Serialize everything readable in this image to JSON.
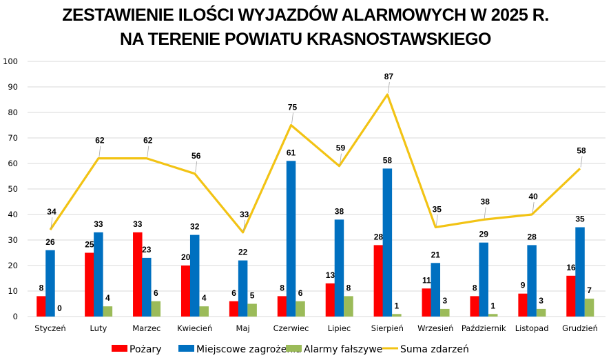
{
  "chart_data": {
    "type": "bar",
    "title": "ZESTAWIENIE ILOŚCI WYJAZDÓW ALARMOWYCH W 2025 R.",
    "subtitle": "NA TERENIE POWIATU KRASNOSTAWSKIEGO",
    "xlabel": "",
    "ylabel": "",
    "ylim": [
      0,
      100
    ],
    "yticks": [
      0,
      10,
      20,
      30,
      40,
      50,
      60,
      70,
      80,
      90,
      100
    ],
    "grid": true,
    "legend_position": "bottom",
    "categories": [
      "Styczeń",
      "Luty",
      "Marzec",
      "Kwiecień",
      "Maj",
      "Czerwiec",
      "Lipiec",
      "Sierpień",
      "Wrzesień",
      "Październik",
      "Listopad",
      "Grudzień"
    ],
    "series": [
      {
        "name": "Pożary",
        "type": "bar",
        "color": "#FF0000",
        "values": [
          8,
          25,
          33,
          20,
          6,
          8,
          13,
          28,
          11,
          8,
          9,
          16
        ]
      },
      {
        "name": "Miejscowe zagrożenia",
        "type": "bar",
        "color": "#0070C0",
        "values": [
          26,
          33,
          23,
          32,
          22,
          61,
          38,
          58,
          21,
          29,
          28,
          35
        ]
      },
      {
        "name": "Alarmy fałszywe",
        "type": "bar",
        "color": "#9BBB59",
        "values": [
          0,
          4,
          6,
          4,
          5,
          6,
          8,
          1,
          3,
          1,
          3,
          7
        ]
      },
      {
        "name": "Suma zdarzeń",
        "type": "line",
        "color": "#F2C314",
        "values": [
          34,
          62,
          62,
          56,
          33,
          75,
          59,
          87,
          35,
          38,
          40,
          58
        ]
      }
    ]
  }
}
